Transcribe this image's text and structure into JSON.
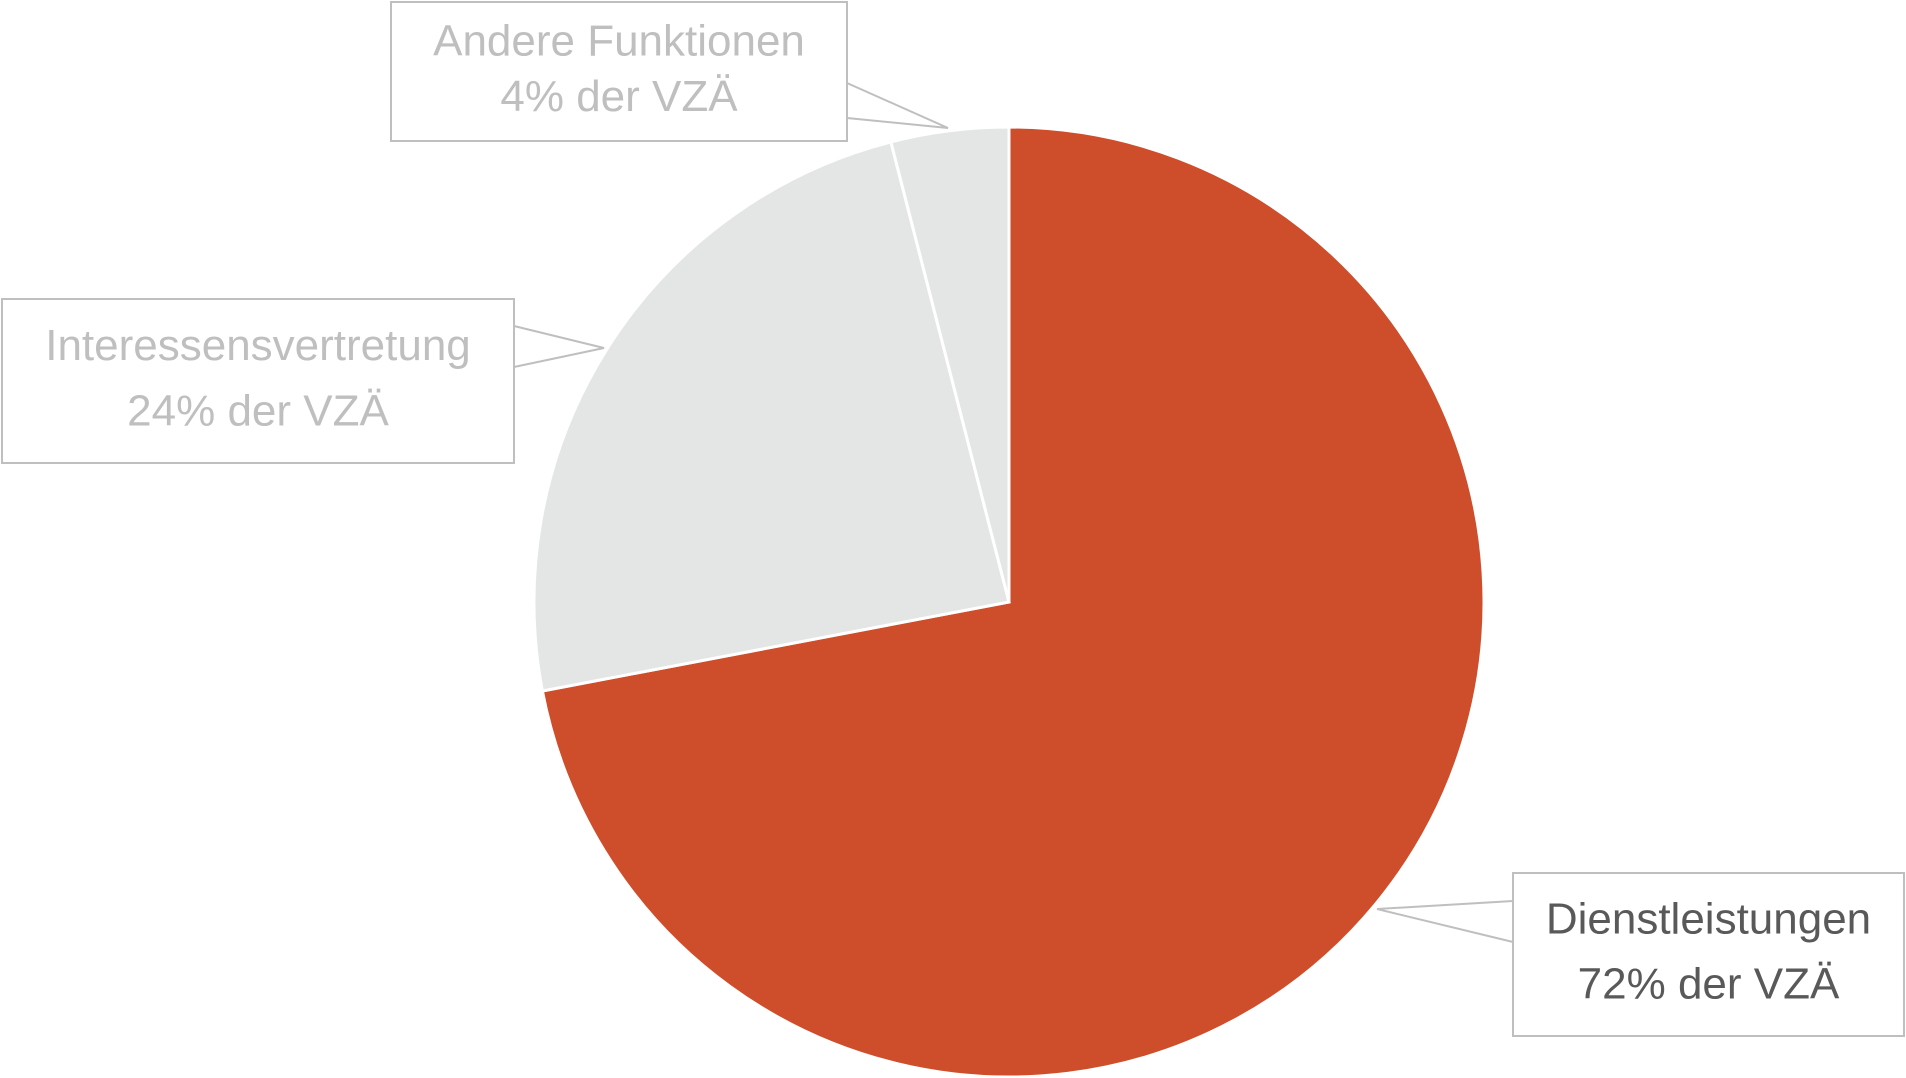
{
  "chart_data": {
    "type": "pie",
    "categories": [
      "Dienstleistungen",
      "Interessensvertretung",
      "Andere Funktionen"
    ],
    "values": [
      72,
      24,
      4
    ],
    "value_labels": [
      "72% der VZÄ",
      "24% der VZÄ",
      "4% der VZÄ"
    ],
    "colors": [
      "#CE4D2B",
      "#E4E5E5",
      "#E4E5E5"
    ],
    "label_colors": [
      "#595959",
      "#BFBFBF",
      "#BFBFBF"
    ]
  }
}
